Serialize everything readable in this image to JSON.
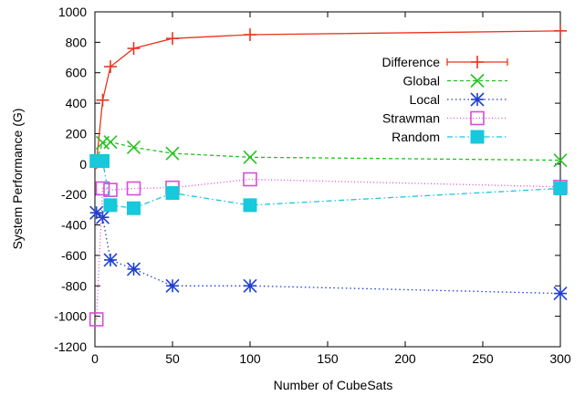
{
  "chart_data": {
    "type": "line",
    "xlabel": "Number of CubeSats",
    "ylabel": "System Performance (G)",
    "xlim": [
      0,
      300
    ],
    "ylim": [
      -1200,
      1000
    ],
    "xticks": [
      0,
      50,
      100,
      150,
      200,
      250,
      300
    ],
    "yticks": [
      -1200,
      -1000,
      -800,
      -600,
      -400,
      -200,
      0,
      200,
      400,
      600,
      800,
      1000
    ],
    "xtick_labels": [
      "0",
      "50",
      "100",
      "150",
      "200",
      "250",
      "300"
    ],
    "ytick_labels": [
      "-1200",
      "-1000",
      "-800",
      "-600",
      "-400",
      "-200",
      "0",
      "200",
      "400",
      "600",
      "800",
      "1000"
    ],
    "grid": false,
    "legend_position": "top-right",
    "series": [
      {
        "name": "Difference",
        "color": "#e8361f",
        "dash": "",
        "marker": "plus",
        "x": [
          1,
          5,
          10,
          25,
          50,
          100,
          300
        ],
        "y": [
          10,
          420,
          640,
          760,
          825,
          850,
          875
        ]
      },
      {
        "name": "Global",
        "color": "#22c21e",
        "dash": "4,3",
        "marker": "cross",
        "x": [
          1,
          5,
          10,
          25,
          50,
          100,
          300
        ],
        "y": [
          20,
          140,
          145,
          110,
          70,
          45,
          25
        ]
      },
      {
        "name": "Local",
        "color": "#1f3fd0",
        "dash": "1.5,3",
        "marker": "star",
        "x": [
          1,
          5,
          10,
          25,
          50,
          100,
          300
        ],
        "y": [
          -320,
          -350,
          -630,
          -690,
          -800,
          -800,
          -850
        ]
      },
      {
        "name": "Strawman",
        "color": "#d64fd6",
        "dash": "1,2.5",
        "marker": "square-open",
        "x": [
          1,
          5,
          10,
          25,
          50,
          100,
          300
        ],
        "y": [
          -1020,
          -160,
          -170,
          -160,
          -155,
          -100,
          -150
        ]
      },
      {
        "name": "Random",
        "color": "#18c8dc",
        "dash": "6,3,1.5,3",
        "marker": "square-filled",
        "x": [
          1,
          5,
          10,
          25,
          50,
          100,
          300
        ],
        "y": [
          20,
          20,
          -270,
          -290,
          -190,
          -270,
          -160
        ]
      }
    ]
  }
}
